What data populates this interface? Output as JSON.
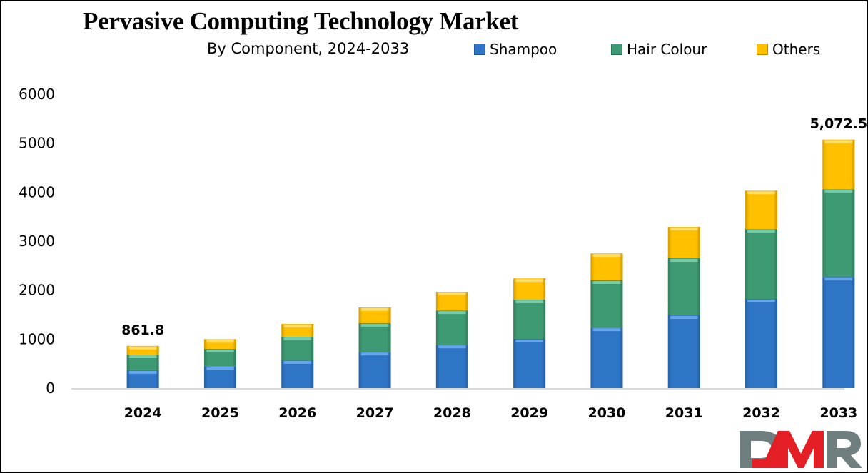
{
  "chart_data": {
    "type": "bar",
    "stacked": true,
    "title": "Pervasive Computing Technology Market",
    "subtitle": "By Component,  2024-2033",
    "xlabel": "",
    "ylabel": "",
    "categories": [
      "2024",
      "2025",
      "2026",
      "2027",
      "2028",
      "2029",
      "2030",
      "2031",
      "2032",
      "2033"
    ],
    "series": [
      {
        "name": "Shampoo",
        "color": "#2E75C6",
        "values": [
          365,
          440,
          570,
          740,
          885,
          1005,
          1235,
          1485,
          1820,
          2270
        ]
      },
      {
        "name": "Hair Colour",
        "color": "#3E9A72",
        "values": [
          320,
          360,
          480,
          585,
          700,
          800,
          965,
          1165,
          1425,
          1790
        ]
      },
      {
        "name": "Others",
        "color": "#FFC000",
        "values": [
          176.8,
          200,
          260,
          320,
          380,
          435,
          550,
          640,
          785,
          1012.5
        ]
      }
    ],
    "totals": [
      861.8,
      1000,
      1310,
      1645,
      1965,
      2240,
      2750,
      3290,
      4030,
      5072.5
    ],
    "data_labels": [
      {
        "category": "2024",
        "text": "861.8"
      },
      {
        "category": "2033",
        "text": "5,072.5"
      }
    ],
    "ylim": [
      0,
      6000
    ],
    "yticks": [
      "0",
      "1000",
      "2000",
      "3000",
      "4000",
      "5000",
      "6000"
    ],
    "grid": false,
    "legend_position": "top-right"
  },
  "branding": {
    "logo_text": "DMR",
    "logo_colors": {
      "gray": "#6F7F80",
      "red": "#E41E25"
    }
  }
}
